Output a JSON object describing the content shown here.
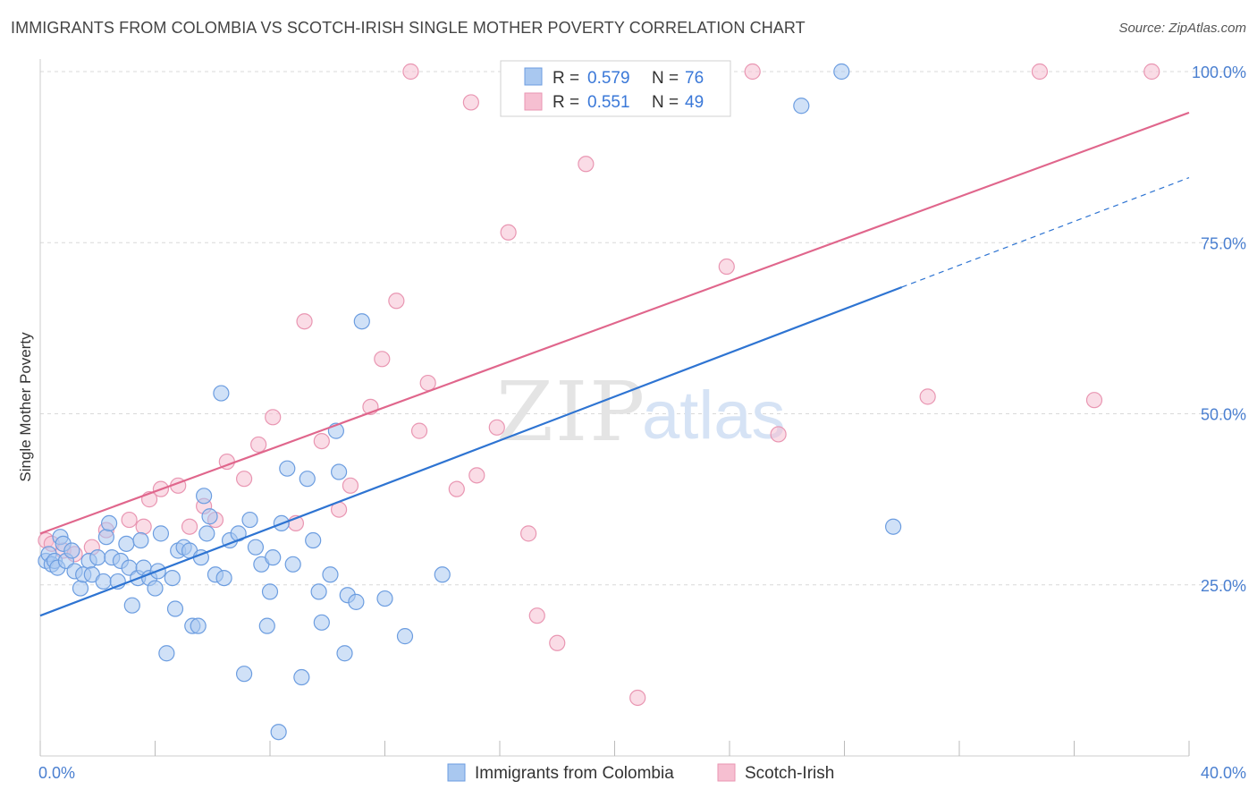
{
  "title": "IMMIGRANTS FROM COLOMBIA VS SCOTCH-IRISH SINGLE MOTHER POVERTY CORRELATION CHART",
  "source": "Source: ZipAtlas.com",
  "watermark": {
    "part1": "ZIP",
    "part2": "atlas"
  },
  "colors": {
    "blue_fill": "#a9c8f0",
    "blue_stroke": "#6c9de0",
    "blue_line": "#2e74d2",
    "pink_fill": "#f6bfd1",
    "pink_stroke": "#e996b2",
    "pink_line": "#e0668c",
    "grid": "#d9d9d9",
    "axis_text": "#4a7fd0"
  },
  "legend": {
    "rows": [
      {
        "r_label": "R =",
        "r_value": "0.579",
        "n_label": "N =",
        "n_value": "76",
        "color": "blue"
      },
      {
        "r_label": "R =",
        "r_value": "0.551",
        "n_label": "N =",
        "n_value": "49",
        "color": "pink"
      }
    ]
  },
  "chart_data": {
    "type": "scatter",
    "ylabel": "Single Mother Poverty",
    "xlim": [
      0,
      40
    ],
    "ylim": [
      0,
      100
    ],
    "x_tick_labels": [
      "0.0%",
      "40.0%"
    ],
    "y_tick_labels": [
      "25.0%",
      "50.0%",
      "75.0%",
      "100.0%"
    ],
    "y_ticks": [
      25,
      50,
      75,
      100
    ],
    "grid": true,
    "legend_position": "top-center",
    "series": [
      {
        "name": "Immigrants from Colombia",
        "color": "blue",
        "trend": {
          "x0": 0,
          "y0": 20.5,
          "x1": 30,
          "y1": 68.5,
          "dash_to_x": 40,
          "dash_to_y": 84.5
        },
        "points": [
          [
            0.2,
            28.5
          ],
          [
            0.3,
            29.5
          ],
          [
            0.4,
            28
          ],
          [
            0.5,
            28.5
          ],
          [
            0.6,
            27.5
          ],
          [
            0.7,
            32
          ],
          [
            0.8,
            31
          ],
          [
            0.9,
            28.5
          ],
          [
            1.1,
            30
          ],
          [
            1.2,
            27
          ],
          [
            1.4,
            24.5
          ],
          [
            1.5,
            26.5
          ],
          [
            1.7,
            28.5
          ],
          [
            1.8,
            26.5
          ],
          [
            2.0,
            29
          ],
          [
            2.2,
            25.5
          ],
          [
            2.3,
            32
          ],
          [
            2.4,
            34
          ],
          [
            2.5,
            29
          ],
          [
            2.7,
            25.5
          ],
          [
            2.8,
            28.5
          ],
          [
            3.0,
            31
          ],
          [
            3.1,
            27.5
          ],
          [
            3.2,
            22
          ],
          [
            3.4,
            26
          ],
          [
            3.5,
            31.5
          ],
          [
            3.6,
            27.5
          ],
          [
            3.8,
            26
          ],
          [
            4.0,
            24.5
          ],
          [
            4.1,
            27
          ],
          [
            4.2,
            32.5
          ],
          [
            4.4,
            15
          ],
          [
            4.6,
            26
          ],
          [
            4.7,
            21.5
          ],
          [
            4.8,
            30
          ],
          [
            5.0,
            30.5
          ],
          [
            5.2,
            30
          ],
          [
            5.3,
            19
          ],
          [
            5.5,
            19
          ],
          [
            5.6,
            29
          ],
          [
            5.7,
            38
          ],
          [
            5.8,
            32.5
          ],
          [
            5.9,
            35
          ],
          [
            6.1,
            26.5
          ],
          [
            6.3,
            53
          ],
          [
            6.4,
            26
          ],
          [
            6.6,
            31.5
          ],
          [
            6.9,
            32.5
          ],
          [
            7.1,
            12
          ],
          [
            7.3,
            34.5
          ],
          [
            7.5,
            30.5
          ],
          [
            7.7,
            28
          ],
          [
            7.9,
            19
          ],
          [
            8.0,
            24
          ],
          [
            8.1,
            29
          ],
          [
            8.3,
            3.5
          ],
          [
            8.4,
            34
          ],
          [
            8.6,
            42
          ],
          [
            8.8,
            28
          ],
          [
            9.1,
            11.5
          ],
          [
            9.3,
            40.5
          ],
          [
            9.5,
            31.5
          ],
          [
            9.7,
            24
          ],
          [
            9.8,
            19.5
          ],
          [
            10.1,
            26.5
          ],
          [
            10.3,
            47.5
          ],
          [
            10.4,
            41.5
          ],
          [
            10.6,
            15
          ],
          [
            10.7,
            23.5
          ],
          [
            11.0,
            22.5
          ],
          [
            11.2,
            63.5
          ],
          [
            12.0,
            23
          ],
          [
            12.7,
            17.5
          ],
          [
            14.0,
            26.5
          ],
          [
            26.5,
            95
          ],
          [
            27.9,
            100
          ],
          [
            29.7,
            33.5
          ]
        ]
      },
      {
        "name": "Scotch-Irish",
        "color": "pink",
        "trend": {
          "x0": 0,
          "y0": 32.5,
          "x1": 40,
          "y1": 94
        },
        "points": [
          [
            0.2,
            31.5
          ],
          [
            0.4,
            31
          ],
          [
            0.8,
            30
          ],
          [
            1.2,
            29.5
          ],
          [
            1.8,
            30.5
          ],
          [
            2.3,
            33
          ],
          [
            3.1,
            34.5
          ],
          [
            3.6,
            33.5
          ],
          [
            3.8,
            37.5
          ],
          [
            4.2,
            39
          ],
          [
            4.8,
            39.5
          ],
          [
            5.2,
            33.5
          ],
          [
            5.7,
            36.5
          ],
          [
            6.1,
            34.5
          ],
          [
            6.5,
            43
          ],
          [
            7.1,
            40.5
          ],
          [
            7.6,
            45.5
          ],
          [
            8.1,
            49.5
          ],
          [
            8.9,
            34
          ],
          [
            9.2,
            63.5
          ],
          [
            9.8,
            46
          ],
          [
            10.4,
            36
          ],
          [
            10.8,
            39.5
          ],
          [
            11.5,
            51
          ],
          [
            11.9,
            58
          ],
          [
            12.4,
            66.5
          ],
          [
            12.9,
            100
          ],
          [
            13.2,
            47.5
          ],
          [
            13.5,
            54.5
          ],
          [
            14.5,
            39
          ],
          [
            15.0,
            95.5
          ],
          [
            15.2,
            41
          ],
          [
            15.9,
            48
          ],
          [
            16.3,
            76.5
          ],
          [
            17.0,
            32.5
          ],
          [
            17.3,
            20.5
          ],
          [
            18.0,
            16.5
          ],
          [
            18.4,
            100
          ],
          [
            19.0,
            86.5
          ],
          [
            20.8,
            8.5
          ],
          [
            22.8,
            100
          ],
          [
            23.9,
            71.5
          ],
          [
            24.8,
            100
          ],
          [
            25.7,
            47
          ],
          [
            30.9,
            52.5
          ],
          [
            34.8,
            100
          ],
          [
            36.7,
            52
          ],
          [
            38.7,
            100
          ]
        ]
      }
    ]
  },
  "bottom_legend": [
    {
      "label": "Immigrants from Colombia",
      "color": "blue"
    },
    {
      "label": "Scotch-Irish",
      "color": "pink"
    }
  ]
}
